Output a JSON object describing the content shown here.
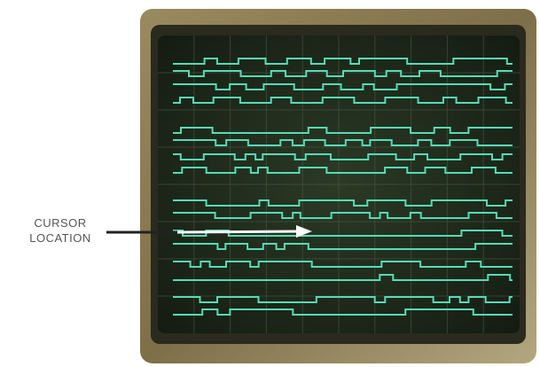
{
  "annotation": {
    "lines": [
      "CURSOR",
      "LOCATION"
    ]
  }
}
